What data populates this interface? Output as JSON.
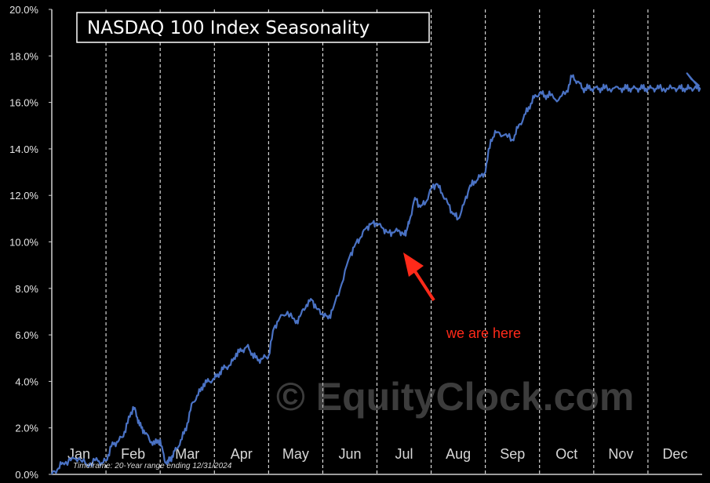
{
  "chart_data": {
    "type": "line",
    "title": "NASDAQ 100 Index Seasonality",
    "xlabel": "",
    "ylabel": "",
    "ylim": [
      0,
      20
    ],
    "grid": true,
    "y_ticks": [
      "0.0%",
      "2.0%",
      "4.0%",
      "6.0%",
      "8.0%",
      "10.0%",
      "12.0%",
      "14.0%",
      "16.0%",
      "18.0%",
      "20.0%"
    ],
    "months": [
      "Jan",
      "Feb",
      "Mar",
      "Apr",
      "May",
      "Jun",
      "Jul",
      "Aug",
      "Sep",
      "Oct",
      "Nov",
      "Dec"
    ],
    "series": [
      {
        "name": "",
        "x": [
          0,
          0.1,
          0.2,
          0.35,
          0.5,
          0.65,
          0.8,
          0.92,
          1.0,
          1.1,
          1.2,
          1.3,
          1.4,
          1.5,
          1.55,
          1.62,
          1.7,
          1.8,
          1.9,
          2.0,
          2.08,
          2.15,
          2.22,
          2.3,
          2.4,
          2.5,
          2.6,
          2.7,
          2.8,
          2.9,
          3.0,
          3.1,
          3.2,
          3.3,
          3.4,
          3.5,
          3.6,
          3.7,
          3.8,
          3.9,
          4.0,
          4.1,
          4.2,
          4.35,
          4.5,
          4.6,
          4.7,
          4.8,
          4.9,
          5.0,
          5.1,
          5.2,
          5.35,
          5.5,
          5.6,
          5.7,
          5.8,
          5.9,
          6.0,
          6.1,
          6.2,
          6.3,
          6.4,
          6.5,
          6.55,
          6.6,
          6.7,
          6.8,
          6.9,
          7.0,
          7.1,
          7.2,
          7.3,
          7.4,
          7.5,
          7.6,
          7.7,
          7.8,
          7.9,
          8.0,
          8.1,
          8.2,
          8.35,
          8.5,
          8.6,
          8.7,
          8.8,
          8.9,
          9.0,
          9.1,
          9.2,
          9.35,
          9.5,
          9.6,
          9.7,
          9.8,
          9.9,
          10.0,
          10.1,
          10.2,
          10.35,
          10.5,
          10.6,
          10.7,
          10.8,
          10.9,
          11.0,
          11.1,
          11.2,
          11.35,
          11.5,
          11.6,
          11.7,
          11.8,
          11.9,
          12.0
        ],
        "values": [
          0.0,
          0.2,
          0.5,
          0.6,
          0.7,
          0.4,
          0.6,
          0.5,
          0.6,
          1.2,
          1.4,
          1.6,
          2.2,
          2.9,
          2.7,
          2.1,
          1.9,
          1.5,
          1.3,
          1.5,
          0.6,
          0.5,
          0.8,
          1.1,
          1.5,
          2.2,
          3.1,
          3.4,
          3.9,
          4.0,
          4.1,
          4.4,
          4.6,
          4.7,
          5.2,
          5.3,
          5.5,
          5.2,
          4.9,
          5.0,
          5.1,
          6.3,
          6.7,
          7.0,
          6.5,
          6.9,
          7.3,
          7.5,
          7.1,
          6.9,
          6.7,
          7.2,
          8.2,
          9.4,
          9.9,
          10.2,
          10.6,
          10.8,
          10.8,
          10.6,
          10.4,
          10.4,
          10.5,
          10.3,
          10.5,
          10.9,
          11.9,
          11.5,
          11.7,
          12.3,
          12.5,
          12.1,
          11.7,
          11.2,
          11.0,
          11.6,
          12.3,
          12.6,
          12.8,
          13.0,
          14.4,
          14.7,
          14.6,
          14.4,
          14.9,
          15.3,
          15.8,
          16.2,
          16.4,
          16.3,
          16.3,
          16.1,
          16.5,
          17.1,
          16.9,
          16.6,
          16.6,
          16.6,
          16.6,
          16.6,
          16.6,
          16.6,
          16.6,
          16.6,
          16.6,
          16.6,
          16.6,
          16.6,
          16.6,
          16.6,
          16.6,
          16.6,
          16.6,
          16.6,
          16.6,
          16.6
        ]
      }
    ],
    "annotations": [
      "we are here"
    ],
    "footnote": "Timeframe: 20-Year range ending 12/31/2024",
    "watermark": "© EquityClock.com"
  },
  "colors": {
    "background": "#000000",
    "line": "#4a72c4",
    "grid": "#ffffff",
    "annotation": "#ff2a1a"
  }
}
